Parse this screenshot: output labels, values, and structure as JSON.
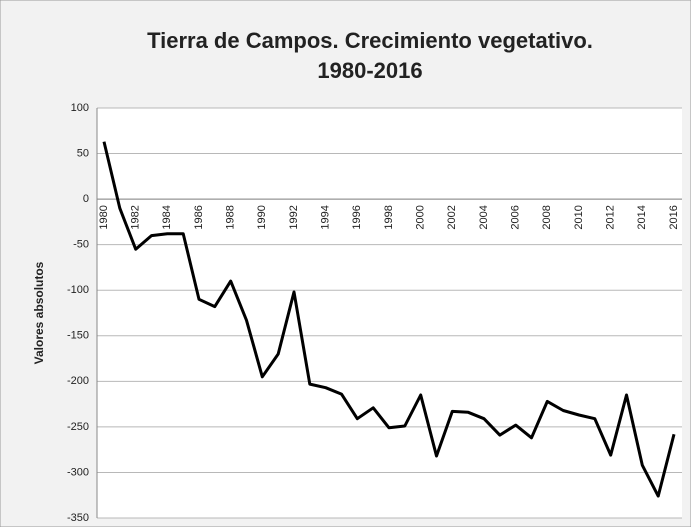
{
  "chart_data": {
    "type": "line",
    "title": "Tierra de Campos. Crecimiento vegetativo.",
    "subtitle": "1980-2016",
    "y_label": "Valores absolutos",
    "categories": [
      "1980",
      null,
      "1982",
      null,
      "1984",
      null,
      "1986",
      null,
      "1988",
      null,
      "1990",
      null,
      "1992",
      null,
      "1994",
      null,
      "1996",
      null,
      "1998",
      null,
      "2000",
      null,
      "2002",
      null,
      "2004",
      null,
      "2006",
      null,
      "2008",
      null,
      "2010",
      null,
      "2012",
      null,
      "2014",
      null,
      "2016"
    ],
    "series": [
      {
        "name": "Crecimiento vegetativo",
        "color": "#000000",
        "values": [
          63,
          -10,
          -55,
          -40,
          -38,
          -38,
          -110,
          -118,
          -90,
          -133,
          -195,
          -170,
          -102,
          -203,
          -207,
          -214,
          -241,
          -229,
          -251,
          -249,
          -215,
          -282,
          -233,
          -234,
          -241,
          -259,
          -248,
          -262,
          -222,
          -232,
          -237,
          -241,
          -281,
          -215,
          -292,
          -326,
          -258
        ]
      }
    ],
    "ylim": [
      -350,
      100
    ],
    "yticks": [
      -350,
      -300,
      -250,
      -200,
      -150,
      -100,
      -50,
      0,
      50,
      100
    ],
    "grid": true
  }
}
